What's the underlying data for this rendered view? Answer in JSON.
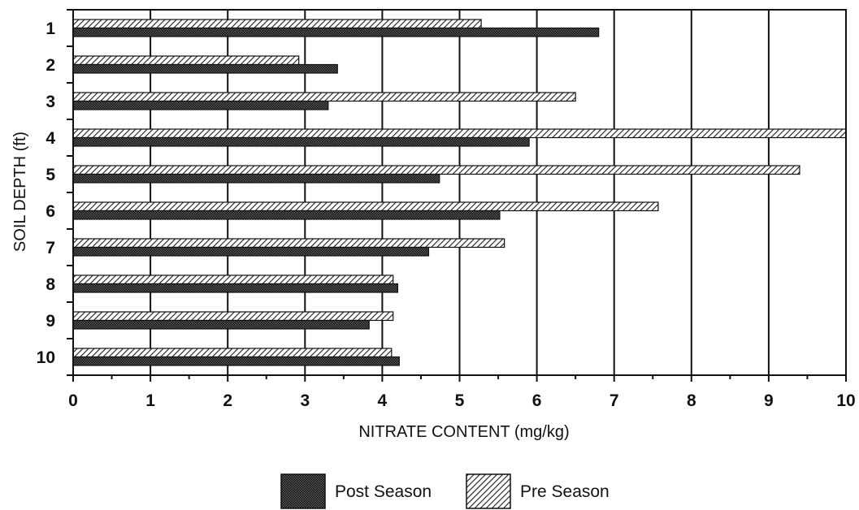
{
  "chart_data": {
    "type": "bar",
    "orientation": "horizontal",
    "categories": [
      "1",
      "2",
      "3",
      "4",
      "5",
      "6",
      "7",
      "8",
      "9",
      "10"
    ],
    "series": [
      {
        "name": "Pre Season",
        "values": [
          5.28,
          2.92,
          6.5,
          10.0,
          9.4,
          7.57,
          5.58,
          4.14,
          4.14,
          4.12
        ]
      },
      {
        "name": "Post Season",
        "values": [
          6.8,
          3.42,
          3.3,
          5.9,
          4.74,
          5.52,
          4.6,
          4.2,
          3.83,
          4.22
        ]
      }
    ],
    "xlabel": "NITRATE CONTENT (mg/kg)",
    "ylabel": "SOIL DEPTH (ft)",
    "xlim": [
      0,
      10
    ],
    "xticks": [
      "0",
      "1",
      "2",
      "3",
      "4",
      "5",
      "6",
      "7",
      "8",
      "9",
      "10"
    ],
    "grid": "vertical",
    "legend_position": "bottom"
  }
}
